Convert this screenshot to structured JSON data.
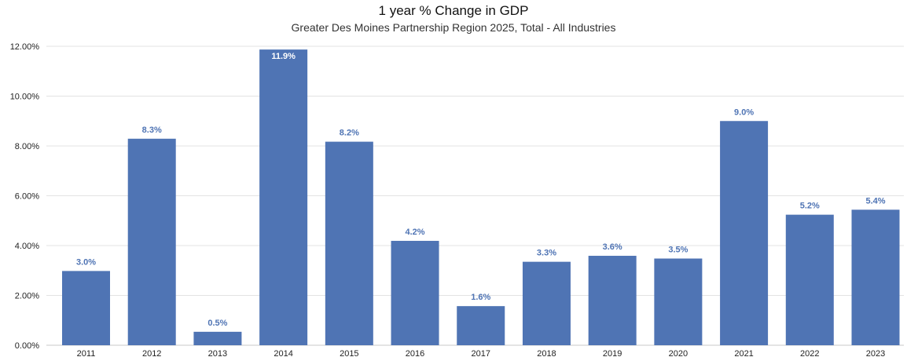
{
  "chart_data": {
    "type": "bar",
    "title": "1 year % Change in GDP",
    "subtitle": "Greater Des Moines Partnership Region 2025, Total - All Industries",
    "categories": [
      "2011",
      "2012",
      "2013",
      "2014",
      "2015",
      "2016",
      "2017",
      "2018",
      "2019",
      "2020",
      "2021",
      "2022",
      "2023"
    ],
    "values": [
      2.98,
      8.29,
      0.54,
      11.87,
      8.17,
      4.19,
      1.57,
      3.35,
      3.59,
      3.48,
      9.0,
      5.24,
      5.44
    ],
    "data_labels": [
      "3.0%",
      "8.3%",
      "0.5%",
      "11.9%",
      "8.2%",
      "4.2%",
      "1.6%",
      "3.3%",
      "3.6%",
      "3.5%",
      "9.0%",
      "5.2%",
      "5.4%"
    ],
    "ylim": [
      0,
      12
    ],
    "y_ticks": [
      "0.00%",
      "2.00%",
      "4.00%",
      "6.00%",
      "8.00%",
      "10.00%",
      "12.00%"
    ],
    "xlabel": "",
    "ylabel": "",
    "grid": true,
    "colors": {
      "bar": "#4f74b4",
      "label_outside": "#4f74b4",
      "label_inside": "#ffffff",
      "grid": "#e3e3e3",
      "axis": "#c8c8c8"
    }
  }
}
